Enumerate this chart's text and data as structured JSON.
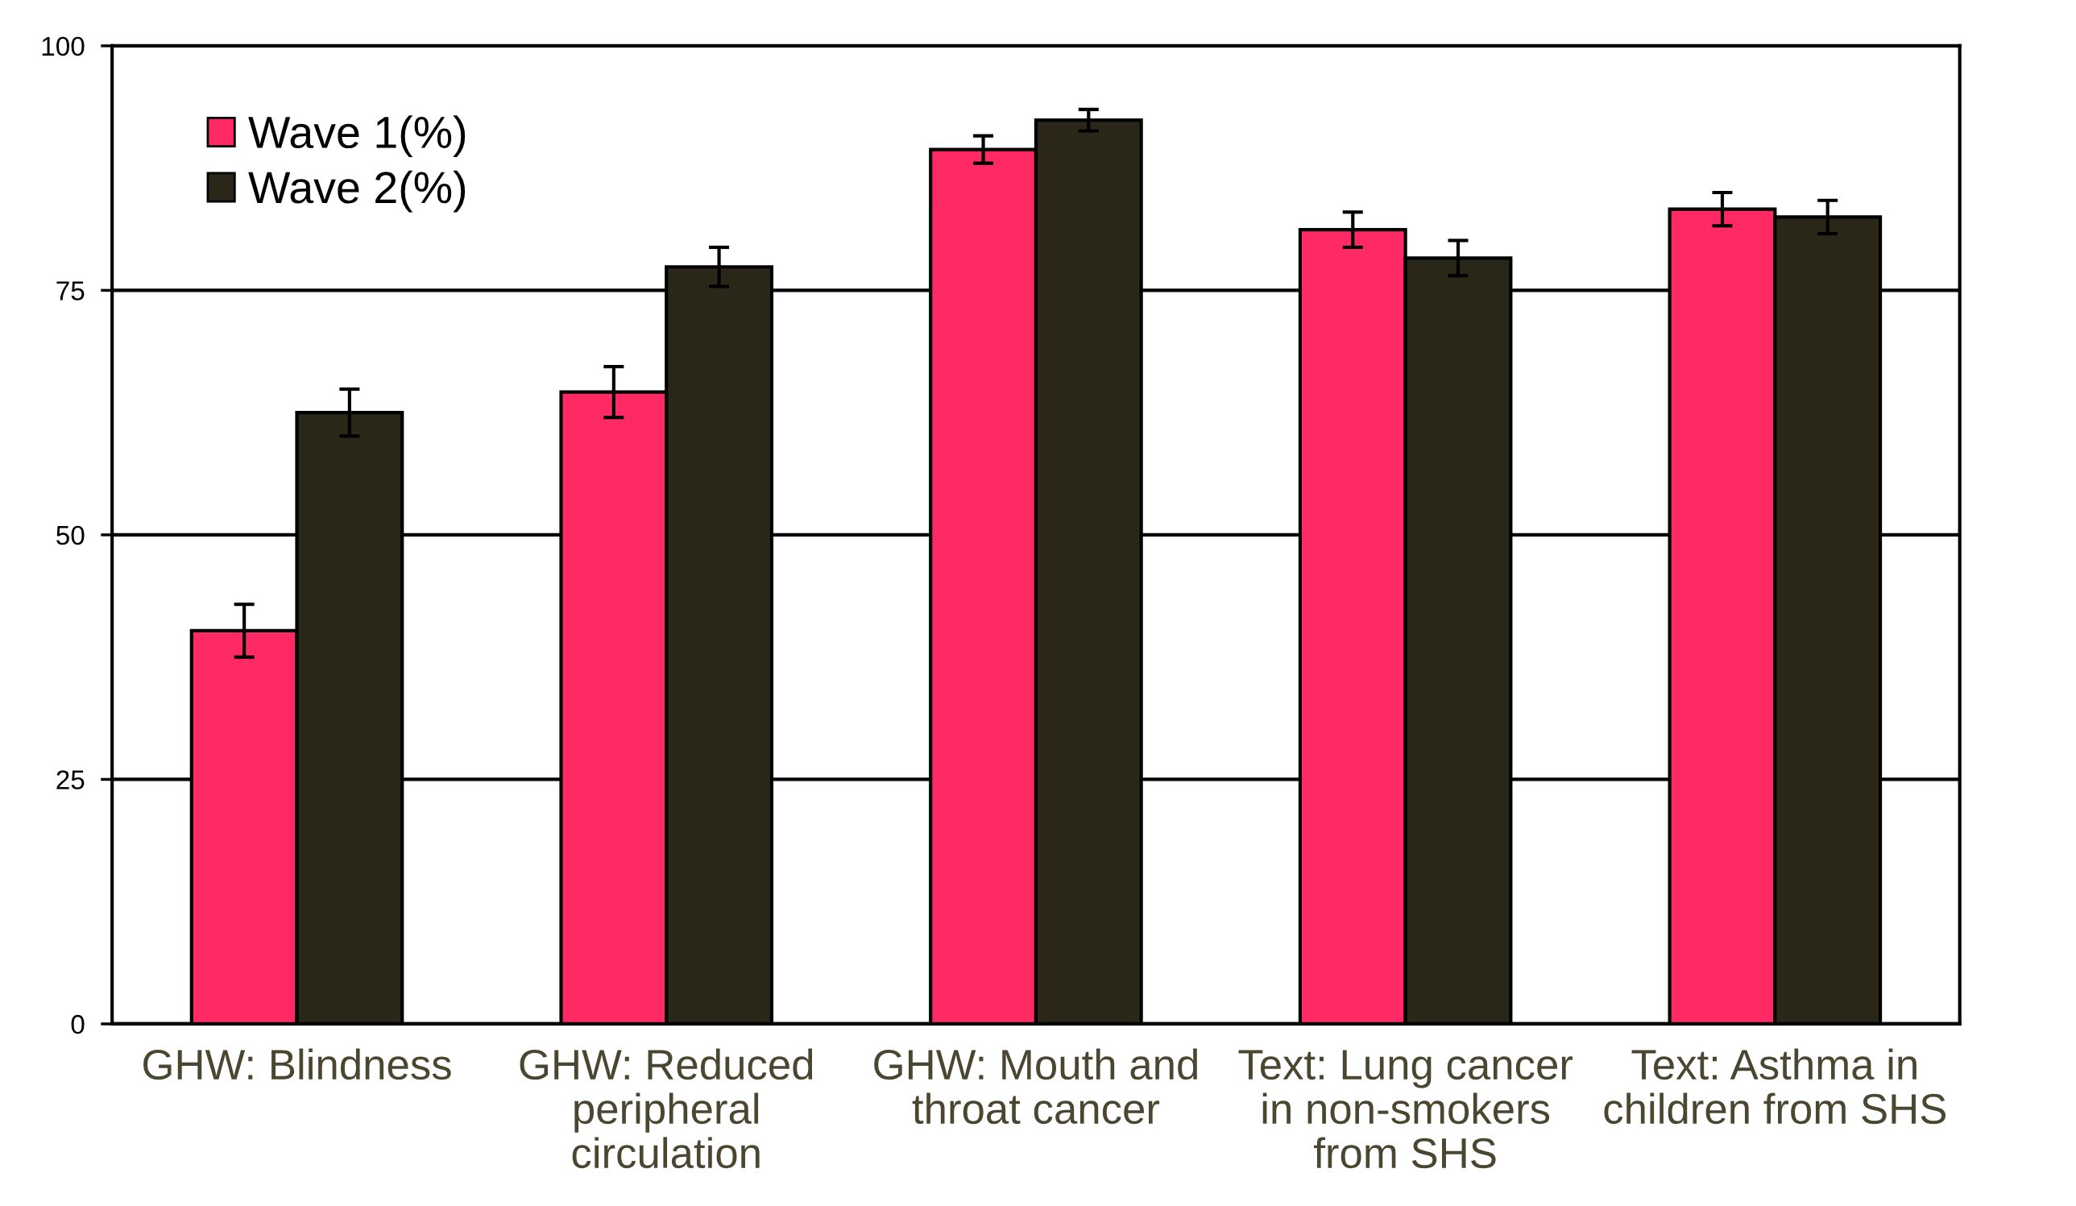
{
  "chart_data": {
    "type": "bar",
    "categories": [
      "GHW: Blindness",
      "GHW: Reduced\nperipheral\ncirculation",
      "GHW: Mouth and\nthroat cancer",
      "Text: Lung cancer\nin non-smokers\nfrom SHS",
      "Text: Asthma in\nchildren from SHS"
    ],
    "series": [
      {
        "name": "Wave 1(%)",
        "color": "#ff2a63",
        "values": [
          40.2,
          64.6,
          89.4,
          81.2,
          83.3
        ],
        "errors": [
          2.7,
          2.6,
          1.4,
          1.8,
          1.7
        ]
      },
      {
        "name": "Wave 2(%)",
        "color": "#2a2718",
        "values": [
          62.5,
          77.4,
          92.4,
          78.3,
          82.5
        ],
        "errors": [
          2.4,
          2.0,
          1.1,
          1.8,
          1.7
        ]
      }
    ],
    "ylim": [
      0,
      100
    ],
    "yticks": [
      0,
      25,
      50,
      75,
      100
    ],
    "grid": "y",
    "legend": "top left"
  }
}
